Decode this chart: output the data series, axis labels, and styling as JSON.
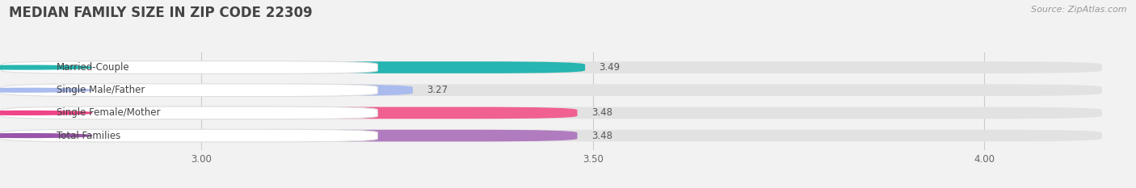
{
  "title": "MEDIAN FAMILY SIZE IN ZIP CODE 22309",
  "source": "Source: ZipAtlas.com",
  "categories": [
    "Married-Couple",
    "Single Male/Father",
    "Single Female/Mother",
    "Total Families"
  ],
  "values": [
    3.49,
    3.27,
    3.48,
    3.48
  ],
  "bar_colors": [
    "#26b5b0",
    "#aabbee",
    "#f06090",
    "#b07bbf"
  ],
  "dot_colors": [
    "#26b5b0",
    "#aabbee",
    "#ee4488",
    "#9955aa"
  ],
  "background_color": "#f2f2f2",
  "bar_bg_color": "#e2e2e2",
  "xlim_min": 2.75,
  "xlim_max": 4.15,
  "xticks": [
    3.0,
    3.5,
    4.0
  ],
  "xtick_labels": [
    "3.00",
    "3.50",
    "4.00"
  ],
  "bar_height": 0.52,
  "label_fontsize": 8.5,
  "title_fontsize": 12,
  "value_fontsize": 8.5,
  "source_fontsize": 8
}
